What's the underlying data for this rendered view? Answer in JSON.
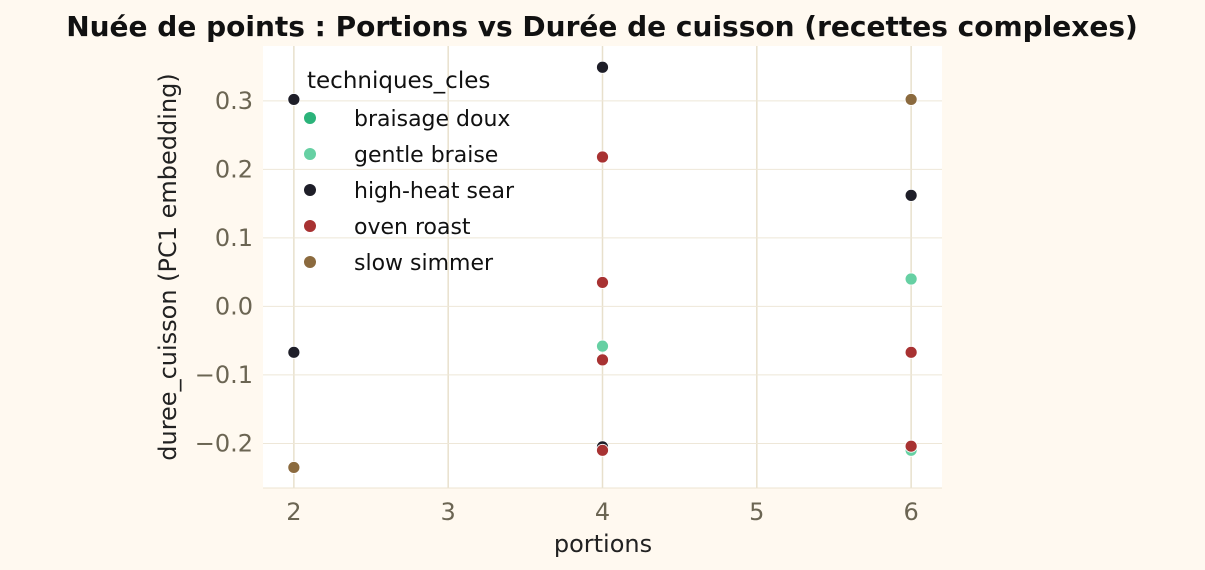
{
  "chart_data": {
    "type": "scatter",
    "title": "Nuée de points : Portions vs Durée de cuisson (recettes complexes)",
    "xlabel": "portions",
    "ylabel": "duree_cuisson (PC1 embedding)",
    "xlim": [
      1.8,
      6.2
    ],
    "ylim": [
      -0.265,
      0.38
    ],
    "xticks": [
      2,
      3,
      4,
      5,
      6
    ],
    "xtick_labels": [
      "2",
      "3",
      "4",
      "5",
      "6"
    ],
    "yticks": [
      -0.2,
      -0.1,
      0.0,
      0.1,
      0.2,
      0.3
    ],
    "ytick_labels": [
      "−0.2",
      "−0.1",
      "0.0",
      "0.1",
      "0.2",
      "0.3"
    ],
    "grid": true,
    "legend": {
      "title": "techniques_cles",
      "placement": "top-left"
    },
    "series": [
      {
        "name": "braisage doux",
        "color": "#2bb37a",
        "points": []
      },
      {
        "name": "gentle braise",
        "color": "#66d0a3",
        "points": [
          [
            4,
            -0.058
          ],
          [
            6,
            0.04
          ],
          [
            6,
            -0.21
          ]
        ]
      },
      {
        "name": "high-heat sear",
        "color": "#1e1e28",
        "points": [
          [
            2,
            0.302
          ],
          [
            2,
            -0.067
          ],
          [
            4,
            0.349
          ],
          [
            4,
            -0.205
          ],
          [
            6,
            0.162
          ]
        ]
      },
      {
        "name": "oven roast",
        "color": "#a83232",
        "points": [
          [
            4,
            0.218
          ],
          [
            4,
            0.035
          ],
          [
            4,
            -0.078
          ],
          [
            4,
            -0.21
          ],
          [
            6,
            -0.067
          ],
          [
            6,
            -0.204
          ]
        ]
      },
      {
        "name": "slow simmer",
        "color": "#8b6a3e",
        "points": [
          [
            2,
            -0.235
          ],
          [
            6,
            0.302
          ]
        ]
      }
    ]
  }
}
